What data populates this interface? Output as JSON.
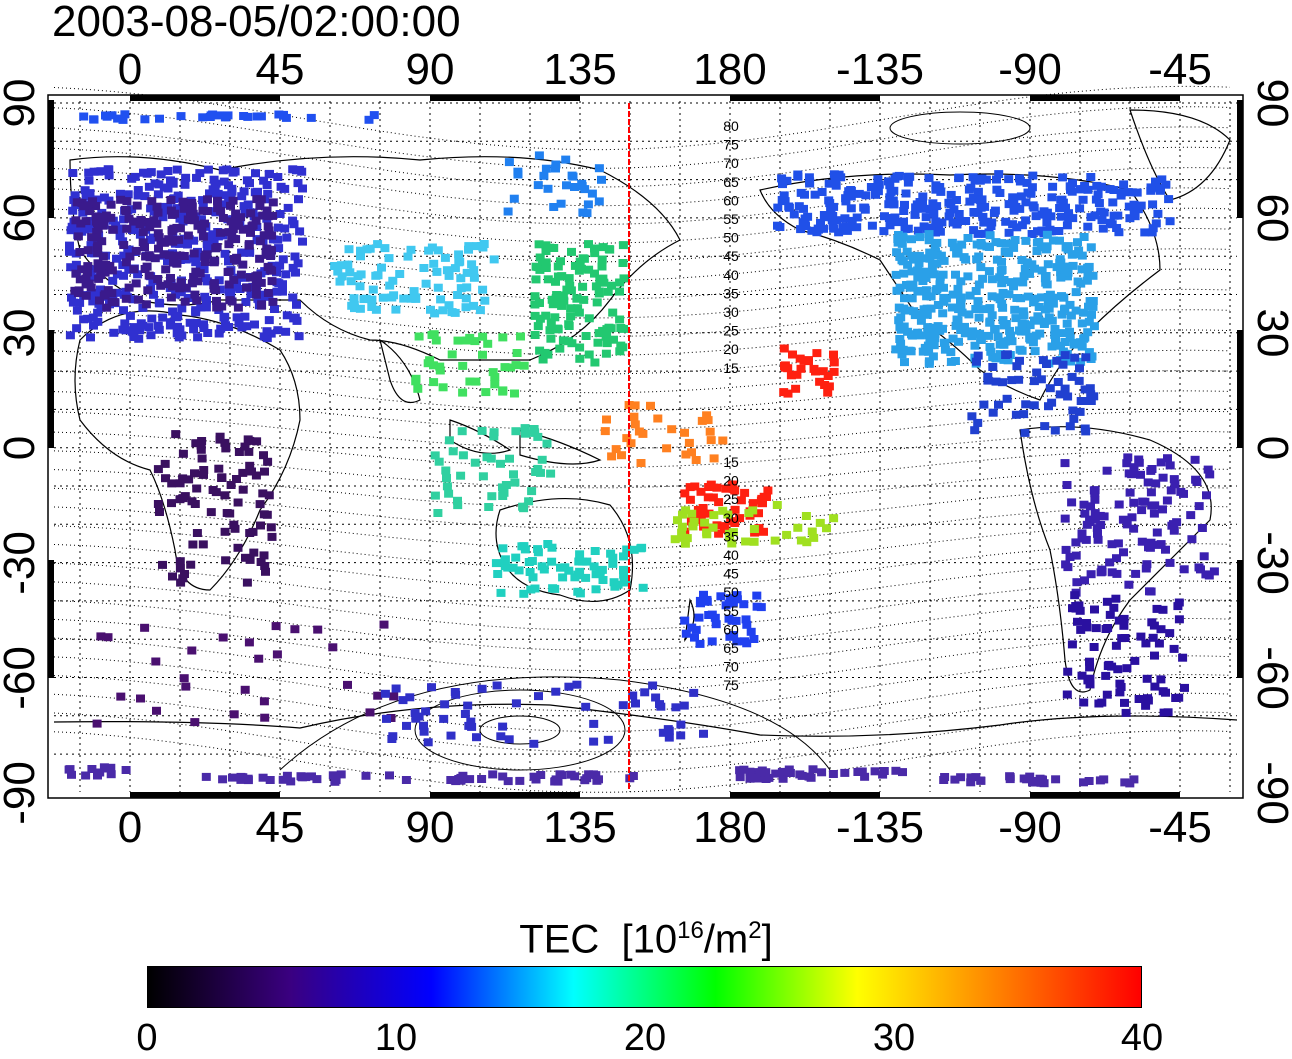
{
  "timestamp": "2003-08-05/02:00:00",
  "map": {
    "top_axis_labels": [
      "0",
      "45",
      "90",
      "135",
      "180",
      "-135",
      "-90",
      "-45"
    ],
    "bottom_axis_labels": [
      "0",
      "45",
      "90",
      "135",
      "180",
      "-135",
      "-90",
      "-45"
    ],
    "left_axis_labels": [
      "90",
      "60",
      "30",
      "0",
      "-30",
      "-60",
      "-90"
    ],
    "right_axis_labels": [
      "90",
      "60",
      "30",
      "0",
      "-30",
      "-60",
      "-90"
    ],
    "contour_labels_north": [
      "80",
      "75",
      "70",
      "65",
      "60",
      "55",
      "50",
      "45",
      "40",
      "35",
      "30",
      "25",
      "20",
      "15"
    ],
    "contour_labels_south": [
      "15",
      "20",
      "25",
      "30",
      "35",
      "40",
      "45",
      "50",
      "55",
      "60",
      "65",
      "70",
      "75"
    ],
    "marker_line_color": "#ff0000",
    "tec_region_colors": {
      "europe": "#3a1a8c",
      "north_america": "#2aa0e8",
      "east_asia": "#22c870",
      "pacific_hotspot": "#ff2010",
      "south_america": "#3a20b0",
      "africa": "#3a1060",
      "antarctica": "#4a2aa8"
    }
  },
  "colorbar": {
    "title": "TEC",
    "unit_prefix": "10",
    "unit_exp": "16",
    "unit_mid": "/m",
    "unit_exp2": "2",
    "ticks": [
      "0",
      "10",
      "20",
      "30",
      "40"
    ],
    "range": [
      0,
      40
    ],
    "stops": [
      "#000000",
      "#3a0080",
      "#0000ff",
      "#00ffff",
      "#00ff00",
      "#ffff00",
      "#ff8000",
      "#ff0000"
    ]
  }
}
